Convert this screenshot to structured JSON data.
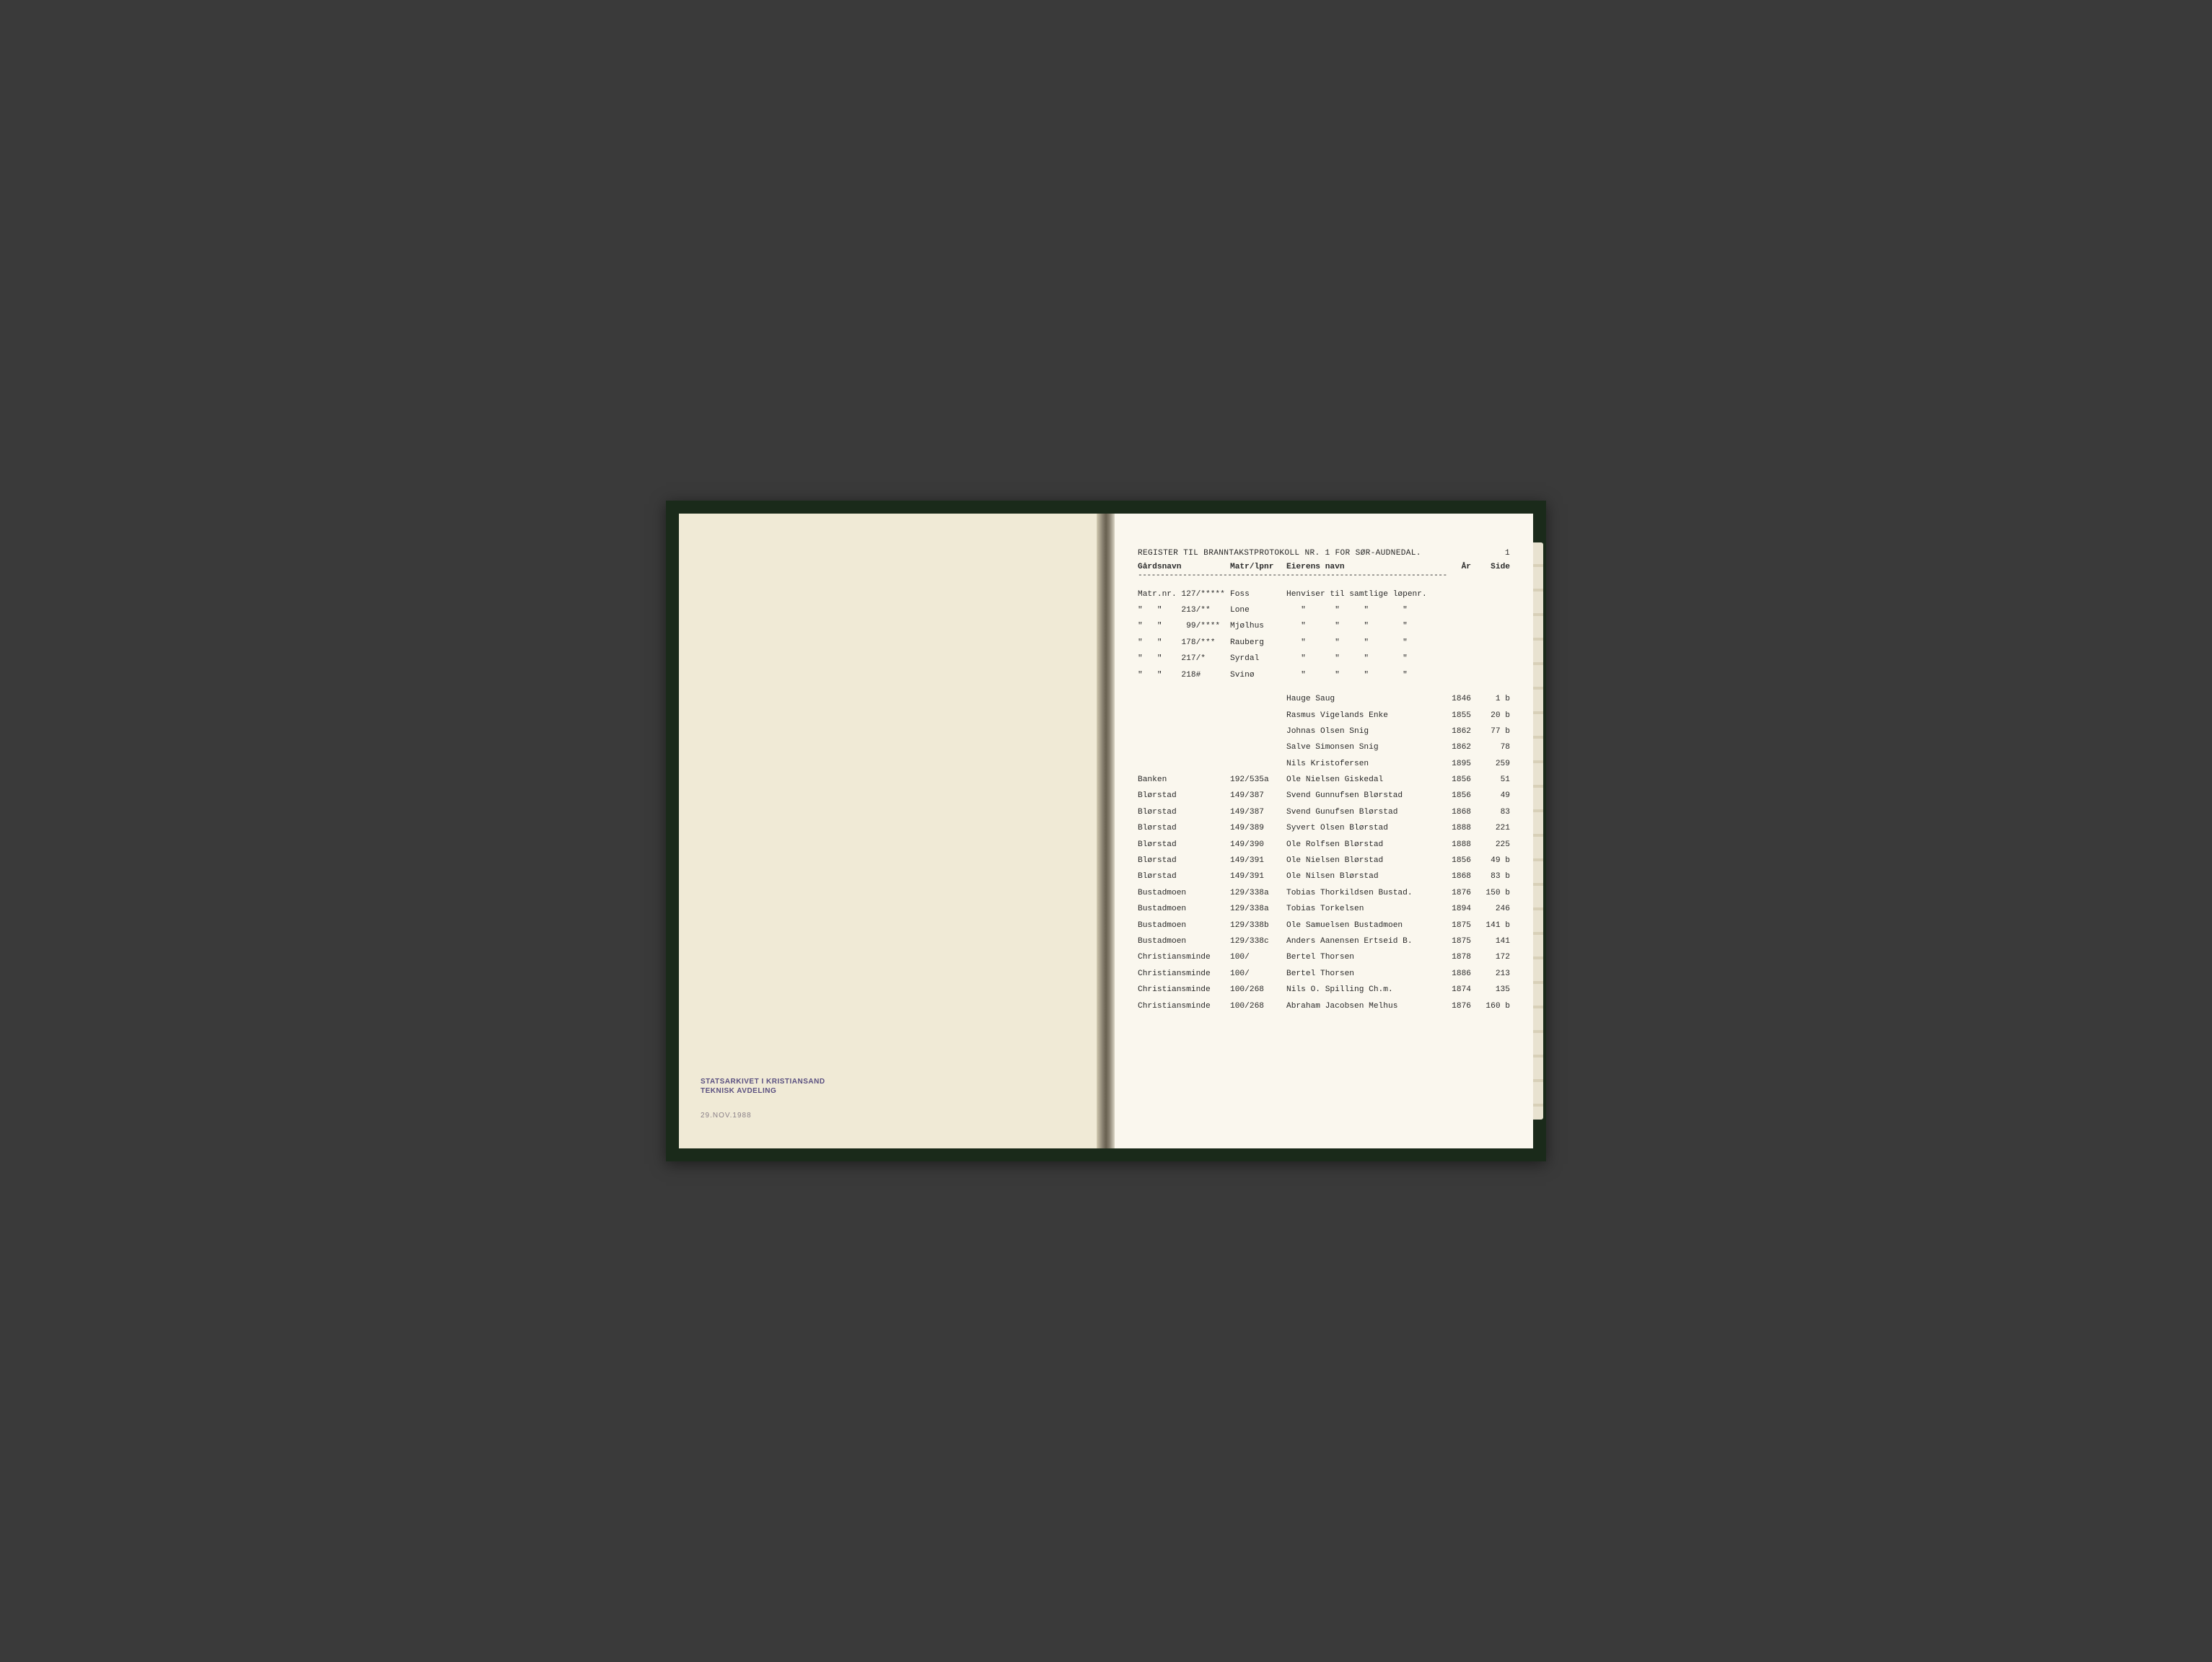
{
  "left_page": {
    "stamp_line1": "STATSARKIVET I KRISTIANSAND",
    "stamp_line2": "TEKNISK AVDELING",
    "date": "29.NOV.1988"
  },
  "right_page": {
    "title": "REGISTER TIL BRANNTAKSTPROTOKOLL NR. 1 FOR SØR-AUDNEDAL.",
    "page_num": "1",
    "headers": {
      "gardsnavn": "Gårdsnavn",
      "matr": "Matr/lpnr",
      "eier": "Eierens navn",
      "ar": "År",
      "side": "Side"
    },
    "dash_line": "---------------------------------------------------------------------",
    "rows": [
      {
        "g": "Matr.nr. 127/*****",
        "m": "Foss",
        "n": "Henviser til samtlige løpenr.",
        "a": "",
        "s": ""
      },
      {
        "g": "\"   \"    213/**",
        "m": "Lone",
        "n": "   \"      \"     \"       \"",
        "a": "",
        "s": ""
      },
      {
        "g": "\"   \"     99/****",
        "m": "Mjølhus",
        "n": "   \"      \"     \"       \"",
        "a": "",
        "s": ""
      },
      {
        "g": "\"   \"    178/***",
        "m": "Rauberg",
        "n": "   \"      \"     \"       \"",
        "a": "",
        "s": ""
      },
      {
        "g": "\"   \"    217/*",
        "m": "Syrdal",
        "n": "   \"      \"     \"       \"",
        "a": "",
        "s": ""
      },
      {
        "g": "\"   \"    218#",
        "m": "Svinø",
        "n": "   \"      \"     \"       \"",
        "a": "",
        "s": ""
      },
      {
        "g": "",
        "m": "",
        "n": "",
        "a": "",
        "s": ""
      },
      {
        "g": "",
        "m": "",
        "n": "Hauge Saug",
        "a": "1846",
        "s": "1 b"
      },
      {
        "g": "",
        "m": "",
        "n": "Rasmus Vigelands Enke",
        "a": "1855",
        "s": "20 b"
      },
      {
        "g": "",
        "m": "",
        "n": "Johnas Olsen Snig",
        "a": "1862",
        "s": "77 b"
      },
      {
        "g": "",
        "m": "",
        "n": "Salve Simonsen Snig",
        "a": "1862",
        "s": "78"
      },
      {
        "g": "",
        "m": "",
        "n": "Nils Kristofersen",
        "a": "1895",
        "s": "259"
      },
      {
        "g": "Banken",
        "m": "192/535a",
        "n": "Ole Nielsen Giskedal",
        "a": "1856",
        "s": "51"
      },
      {
        "g": "Blørstad",
        "m": "149/387",
        "n": "Svend Gunnufsen Blørstad",
        "a": "1856",
        "s": "49"
      },
      {
        "g": "Blørstad",
        "m": "149/387",
        "n": "Svend Gunufsen Blørstad",
        "a": "1868",
        "s": "83"
      },
      {
        "g": "Blørstad",
        "m": "149/389",
        "n": "Syvert Olsen Blørstad",
        "a": "1888",
        "s": "221"
      },
      {
        "g": "Blørstad",
        "m": "149/390",
        "n": "Ole Rolfsen Blørstad",
        "a": "1888",
        "s": "225"
      },
      {
        "g": "Blørstad",
        "m": "149/391",
        "n": "Ole Nielsen Blørstad",
        "a": "1856",
        "s": "49 b"
      },
      {
        "g": "Blørstad",
        "m": "149/391",
        "n": "Ole Nilsen Blørstad",
        "a": "1868",
        "s": "83 b"
      },
      {
        "g": "Bustadmoen",
        "m": "129/338a",
        "n": "Tobias Thorkildsen Bustad.",
        "a": "1876",
        "s": "150 b"
      },
      {
        "g": "Bustadmoen",
        "m": "129/338a",
        "n": "Tobias Torkelsen",
        "a": "1894",
        "s": "246"
      },
      {
        "g": "Bustadmoen",
        "m": "129/338b",
        "n": "Ole Samuelsen Bustadmoen",
        "a": "1875",
        "s": "141 b"
      },
      {
        "g": "Bustadmoen",
        "m": "129/338c",
        "n": "Anders Aanensen Ertseid B.",
        "a": "1875",
        "s": "141"
      },
      {
        "g": "Christiansminde",
        "m": "100/",
        "n": "Bertel Thorsen",
        "a": "1878",
        "s": "172"
      },
      {
        "g": "Christiansminde",
        "m": "100/",
        "n": "Bertel Thorsen",
        "a": "1886",
        "s": "213"
      },
      {
        "g": "Christiansminde",
        "m": "100/268",
        "n": "Nils O. Spilling Ch.m.",
        "a": "1874",
        "s": "135"
      },
      {
        "g": "Christiansminde",
        "m": "100/268",
        "n": "Abraham Jacobsen Melhus",
        "a": "1876",
        "s": "160 b"
      }
    ]
  },
  "colors": {
    "book_cover": "#1a2a1a",
    "left_paper": "#f0ead6",
    "right_paper": "#faf7ee",
    "text": "#2a2a2a",
    "stamp": "#5a5080"
  }
}
